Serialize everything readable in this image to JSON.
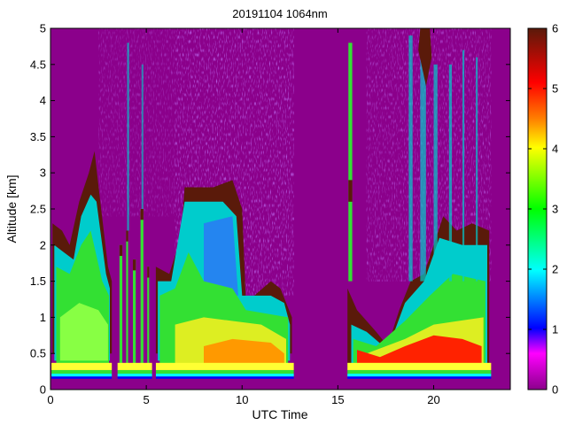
{
  "chart_data": {
    "type": "heatmap",
    "title": "20191104 1064nm",
    "xlabel": "UTC Time",
    "ylabel": "Altitude [km]",
    "xlim": [
      0,
      24
    ],
    "ylim": [
      0,
      5
    ],
    "clim": [
      0,
      6
    ],
    "x_ticks": [
      0,
      5,
      10,
      15,
      20
    ],
    "y_ticks": [
      0,
      0.5,
      1,
      1.5,
      2,
      2.5,
      3,
      3.5,
      4,
      4.5,
      5
    ],
    "colorbar_ticks": [
      0,
      1,
      2,
      3,
      4,
      5,
      6
    ],
    "colormap": [
      "#8b008b",
      "#ff00ff",
      "#0000ff",
      "#00ffff",
      "#00ff00",
      "#ffff00",
      "#ff7f00",
      "#ff0000",
      "#5a1a0a"
    ],
    "background_color": "#8b008b",
    "data_gap_utc": [
      [
        12.7,
        15.5
      ],
      [
        23.0,
        24.0
      ]
    ],
    "aerosol_layer_top_km": [
      {
        "utc": 0.2,
        "km": 2.1
      },
      {
        "utc": 1.0,
        "km": 1.9
      },
      {
        "utc": 2.0,
        "km": 2.8
      },
      {
        "utc": 3.0,
        "km": 1.6
      },
      {
        "utc": 5.5,
        "km": 1.6
      },
      {
        "utc": 7.0,
        "km": 2.7
      },
      {
        "utc": 9.0,
        "km": 2.75
      },
      {
        "utc": 10.5,
        "km": 1.3
      },
      {
        "utc": 12.0,
        "km": 1.4
      },
      {
        "utc": 15.8,
        "km": 1.1
      },
      {
        "utc": 17.5,
        "km": 0.7
      },
      {
        "utc": 19.0,
        "km": 1.2
      },
      {
        "utc": 20.5,
        "km": 2.0
      },
      {
        "utc": 22.5,
        "km": 2.1
      }
    ]
  }
}
